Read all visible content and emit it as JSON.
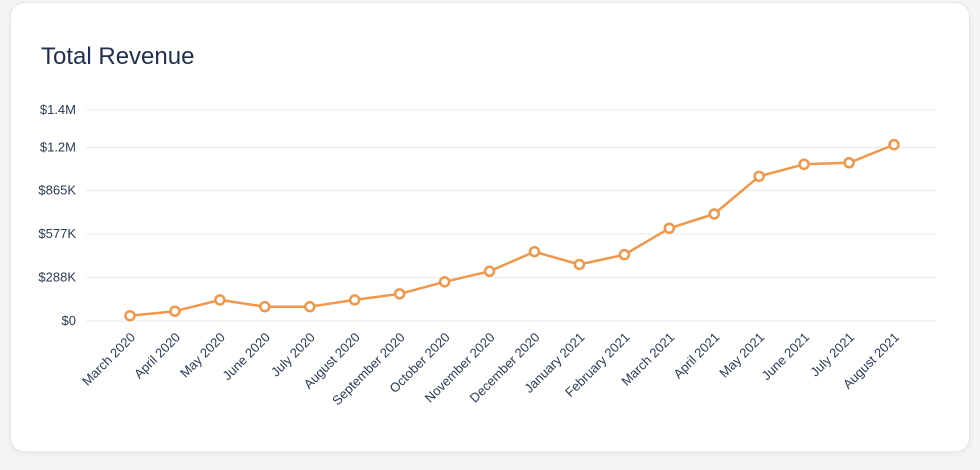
{
  "card": {
    "title": "Total Revenue"
  },
  "colors": {
    "line": "#f0974a",
    "grid": "#e8eaed",
    "text": "#2b3a55",
    "point_fill": "#ffffff"
  },
  "chart_data": {
    "type": "line",
    "title": "Total Revenue",
    "xlabel": "",
    "ylabel": "",
    "grid": true,
    "legend": "none",
    "ylim": [
      0,
      1400000
    ],
    "y_ticks": [
      {
        "value": 0,
        "label": "$0"
      },
      {
        "value": 288000,
        "label": "$288K"
      },
      {
        "value": 577000,
        "label": "$577K"
      },
      {
        "value": 865000,
        "label": "$865K"
      },
      {
        "value": 1150000,
        "label": "$1.2M"
      },
      {
        "value": 1400000,
        "label": "$1.4M"
      }
    ],
    "categories": [
      "March 2020",
      "April 2020",
      "May 2020",
      "June 2020",
      "July 2020",
      "August 2020",
      "September 2020",
      "October 2020",
      "November 2020",
      "December 2020",
      "January 2021",
      "February 2021",
      "March 2021",
      "April 2021",
      "May 2021",
      "June 2021",
      "July 2021",
      "August 2021"
    ],
    "series": [
      {
        "values": [
          35000,
          65000,
          140000,
          95000,
          95000,
          140000,
          180000,
          260000,
          330000,
          460000,
          375000,
          440000,
          615000,
          710000,
          960000,
          1040000,
          1050000,
          1170000
        ]
      }
    ]
  }
}
